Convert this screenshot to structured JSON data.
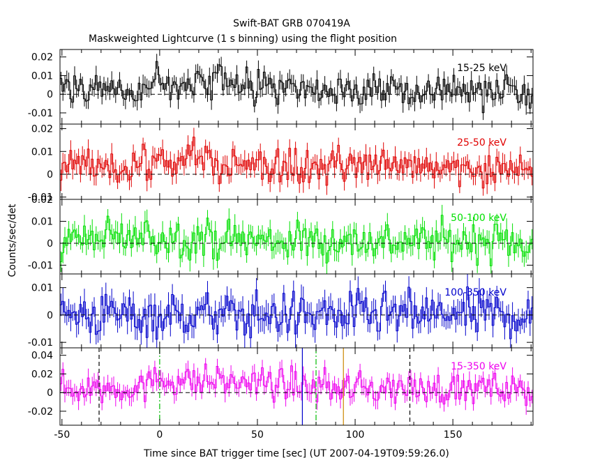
{
  "title_line1": "Swift-BAT GRB 070419A",
  "title_line2": "Maskweighted Lightcurve (1 s binning) using the flight position",
  "xlabel": "Time since BAT trigger time [sec] (UT 2007-04-19T09:59:26.0)",
  "ylabel": "Counts/sec/det",
  "colors": {
    "panel_1": "#000000",
    "panel_2": "#e00000",
    "panel_3": "#00e000",
    "panel_4": "#0000cc",
    "panel_5": "#ee00ee",
    "marker_black": "#000000",
    "marker_green": "#00bb00",
    "marker_blue": "#0000cc",
    "marker_orange": "#cc8800"
  },
  "chart_data": {
    "type": "line",
    "x_range": [
      -51,
      191
    ],
    "x_ticks": [
      -50,
      0,
      50,
      100,
      150
    ],
    "x_tick_labels": [
      "-50",
      "0",
      "50",
      "100",
      "150"
    ],
    "binning_s": 1,
    "panels": [
      {
        "name": "15-25 keV",
        "color_key": "panel_1",
        "ylim": [
          -0.016,
          0.024
        ],
        "y_ticks": [
          -0.01,
          0,
          0.01,
          0.02
        ],
        "y_tick_labels": [
          "-0.01",
          "0",
          "0.01",
          "0.02"
        ],
        "noise": 0.0045,
        "profile": [
          [
            -51,
            0.001
          ],
          [
            -10,
            0.002
          ],
          [
            0,
            0.006
          ],
          [
            30,
            0.006
          ],
          [
            55,
            0.003
          ],
          [
            100,
            0.001
          ],
          [
            150,
            0.002
          ],
          [
            191,
            0.001
          ]
        ]
      },
      {
        "name": "25-50 keV",
        "color_key": "panel_2",
        "ylim": [
          -0.011,
          0.022
        ],
        "y_ticks": [
          -0.01,
          0,
          0.01,
          0.02
        ],
        "y_tick_labels": [
          "-0.01",
          "0",
          "0.01",
          "0.02"
        ],
        "noise": 0.004,
        "profile": [
          [
            -51,
            0.002
          ],
          [
            0,
            0.004
          ],
          [
            15,
            0.007
          ],
          [
            30,
            0.006
          ],
          [
            60,
            0.003
          ],
          [
            125,
            0.004
          ],
          [
            191,
            0.002
          ]
        ]
      },
      {
        "name": "50-100 keV",
        "color_key": "panel_3",
        "ylim": [
          -0.014,
          0.02
        ],
        "y_ticks": [
          -0.01,
          0,
          0.01,
          0.02
        ],
        "y_tick_labels": [
          "-0.01",
          "0",
          "0.01",
          "0.02"
        ],
        "noise": 0.0045,
        "profile": [
          [
            -51,
            0.001
          ],
          [
            0,
            0.003
          ],
          [
            60,
            0.001
          ],
          [
            191,
            0.001
          ]
        ]
      },
      {
        "name": "100-350 keV",
        "color_key": "panel_4",
        "ylim": [
          -0.012,
          0.015
        ],
        "y_ticks": [
          -0.01,
          0,
          0.01
        ],
        "y_tick_labels": [
          "-0.01",
          "0",
          "0.01"
        ],
        "noise": 0.0042,
        "profile": [
          [
            -51,
            0.0
          ],
          [
            191,
            0.0
          ]
        ]
      },
      {
        "name": "15-350 keV",
        "color_key": "panel_5",
        "ylim": [
          -0.035,
          0.048
        ],
        "y_ticks": [
          -0.02,
          0,
          0.02,
          0.04
        ],
        "y_tick_labels": [
          "-0.02",
          "0",
          "0.02",
          "0.04"
        ],
        "noise": 0.0085,
        "profile": [
          [
            -51,
            0.004
          ],
          [
            -5,
            0.006
          ],
          [
            0,
            0.02
          ],
          [
            5,
            0.013
          ],
          [
            30,
            0.012
          ],
          [
            60,
            0.009
          ],
          [
            95,
            0.005
          ],
          [
            191,
            0.003
          ]
        ]
      }
    ],
    "markers": [
      {
        "x": -31,
        "style": "dashed",
        "color_key": "marker_black"
      },
      {
        "x": 0,
        "style": "dashdot",
        "color_key": "marker_green"
      },
      {
        "x": 73,
        "style": "solid",
        "color_key": "marker_blue"
      },
      {
        "x": 80,
        "style": "dashdot",
        "color_key": "marker_green"
      },
      {
        "x": 94,
        "style": "solid",
        "color_key": "marker_orange"
      },
      {
        "x": 128,
        "style": "dashed",
        "color_key": "marker_black"
      }
    ]
  }
}
